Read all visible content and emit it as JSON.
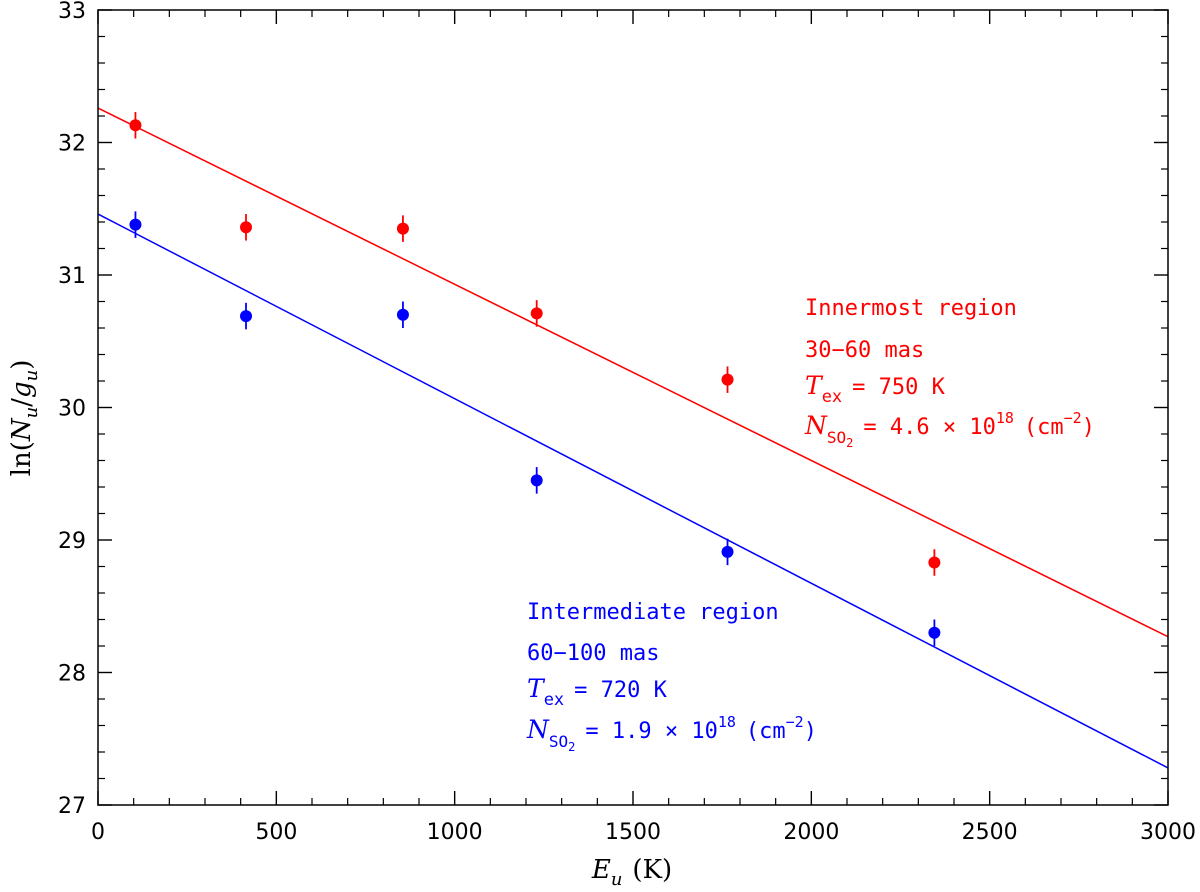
{
  "chart_data": {
    "type": "scatter",
    "title": "",
    "xlabel": "E_u (K)",
    "ylabel": "ln(N_u/g_u)",
    "xlabel_parts": {
      "var": "E",
      "sub": "u",
      "unit": "(K)"
    },
    "ylabel_parts": {
      "fn": "ln(",
      "num": "N",
      "num_sub": "u",
      "slash": "/",
      "den": "g",
      "den_sub": "u",
      "close": ")"
    },
    "xlim": [
      0,
      3000
    ],
    "ylim": [
      27,
      33
    ],
    "x_ticks": [
      0,
      500,
      1000,
      1500,
      2000,
      2500,
      3000
    ],
    "y_ticks": [
      27,
      28,
      29,
      30,
      31,
      32,
      33
    ],
    "x_tick_labels": [
      "0",
      "500",
      "1000",
      "1500",
      "2000",
      "2500",
      "3000"
    ],
    "y_tick_labels": [
      "27",
      "28",
      "29",
      "30",
      "31",
      "32",
      "33"
    ],
    "x_minor_step": 100,
    "y_minor_step": 0.2,
    "grid": false,
    "series": [
      {
        "name": "Innermost region",
        "color": "#ff0000",
        "x": [
          105,
          415,
          855,
          1230,
          1765,
          2345
        ],
        "y": [
          32.13,
          31.36,
          31.35,
          30.71,
          30.21,
          28.83
        ],
        "yerr": [
          0.1,
          0.1,
          0.1,
          0.1,
          0.1,
          0.1
        ],
        "fit": {
          "x": [
            0,
            3000
          ],
          "y": [
            32.26,
            28.27
          ]
        }
      },
      {
        "name": "Intermediate region",
        "color": "#0000ff",
        "x": [
          105,
          415,
          855,
          1230,
          1765,
          2345
        ],
        "y": [
          31.38,
          30.69,
          30.7,
          29.45,
          28.91,
          28.3
        ],
        "yerr": [
          0.1,
          0.1,
          0.1,
          0.1,
          0.1,
          0.1
        ],
        "fit": {
          "x": [
            0,
            3000
          ],
          "y": [
            31.46,
            27.28
          ]
        }
      }
    ],
    "annotations": [
      {
        "region": "Innermost region",
        "range": "30−60 mas",
        "tex_label": "T",
        "tex_sub": "ex",
        "tex_value": "= 750 K",
        "n_label": "N",
        "n_sub": "SO",
        "n_sub2": "2",
        "n_value": "= 4.6 × 10",
        "n_exp": "18",
        "n_unit_open": "(cm",
        "n_unit_exp": "−2",
        "n_unit_close": ")"
      },
      {
        "region": "Intermediate region",
        "range": "60−100 mas",
        "tex_label": "T",
        "tex_sub": "ex",
        "tex_value": "= 720 K",
        "n_label": "N",
        "n_sub": "SO",
        "n_sub2": "2",
        "n_value": "= 1.9 × 10",
        "n_exp": "18",
        "n_unit_open": "(cm",
        "n_unit_exp": "−2",
        "n_unit_close": ")"
      }
    ]
  }
}
